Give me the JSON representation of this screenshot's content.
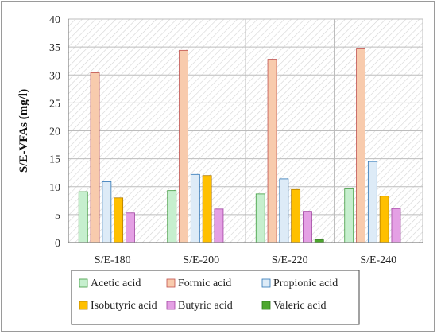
{
  "chart_data": {
    "type": "bar",
    "title": "",
    "xlabel": "",
    "ylabel": "S/E-VFAs (mg/l)",
    "ylim": [
      0,
      40
    ],
    "yticks": [
      0,
      5,
      10,
      15,
      20,
      25,
      30,
      35,
      40
    ],
    "grid": true,
    "legend_position": "bottom",
    "categories": [
      "S/E-180",
      "S/E-200",
      "S/E-220",
      "S/E-240"
    ],
    "series": [
      {
        "name": "Acetic acid",
        "color": "#c6efce",
        "stroke": "#3c9a3c",
        "values": [
          9.1,
          9.3,
          8.7,
          9.6
        ]
      },
      {
        "name": "Formic acid",
        "color": "#f8cbad",
        "stroke": "#c0504d",
        "values": [
          30.4,
          34.4,
          32.8,
          34.8
        ]
      },
      {
        "name": "Propionic acid",
        "color": "#ddebf7",
        "stroke": "#2e75b6",
        "values": [
          10.9,
          12.2,
          11.4,
          14.5
        ]
      },
      {
        "name": "Isobutyric acid",
        "color": "#ffc000",
        "stroke": "#b07a00",
        "values": [
          8.0,
          12.0,
          9.5,
          8.3
        ]
      },
      {
        "name": "Butyric acid",
        "color": "#e4a0e4",
        "stroke": "#a040a0",
        "values": [
          5.3,
          6.0,
          5.6,
          6.1
        ]
      },
      {
        "name": "Valeric acid",
        "color": "#4ea72e",
        "stroke": "#2f7a1a",
        "values": [
          0,
          0,
          0.5,
          0
        ]
      }
    ]
  }
}
